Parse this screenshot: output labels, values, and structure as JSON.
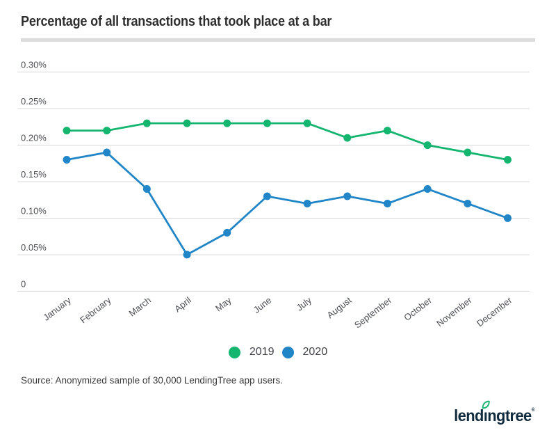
{
  "header": {
    "divider_color": "#dcdcdc"
  },
  "chart_data": {
    "type": "line",
    "title": "Percentage of all transactions that took place at a bar",
    "categories": [
      "January",
      "February",
      "March",
      "April",
      "May",
      "June",
      "July",
      "August",
      "September",
      "October",
      "November",
      "December"
    ],
    "series": [
      {
        "name": "2019",
        "color": "#13b56f",
        "values": [
          0.22,
          0.22,
          0.23,
          0.23,
          0.23,
          0.23,
          0.23,
          0.21,
          0.22,
          0.2,
          0.19,
          0.18
        ]
      },
      {
        "name": "2020",
        "color": "#2186c7",
        "values": [
          0.18,
          0.19,
          0.14,
          0.05,
          0.08,
          0.13,
          0.12,
          0.13,
          0.12,
          0.14,
          0.12,
          0.1
        ]
      }
    ],
    "y_ticks": [
      {
        "value": 0.3,
        "label": "0.30%"
      },
      {
        "value": 0.25,
        "label": "0.25%"
      },
      {
        "value": 0.2,
        "label": "0.20%"
      },
      {
        "value": 0.15,
        "label": "0.15%"
      },
      {
        "value": 0.1,
        "label": "0.10%"
      },
      {
        "value": 0.05,
        "label": "0.05%"
      },
      {
        "value": 0,
        "label": "0"
      }
    ],
    "ylim": [
      0,
      0.3
    ],
    "unit": "%",
    "grid": true,
    "grid_color": "#d8d8d8",
    "axis_text_color": "#4b4f54",
    "legend_position": "bottom"
  },
  "legend": {
    "items": [
      {
        "label": "2019",
        "color": "#13b56f"
      },
      {
        "label": "2020",
        "color": "#2186c7"
      }
    ]
  },
  "footer": {
    "source_note": "Source: Anonymized sample of 30,000 LendingTree app users.",
    "logo": {
      "brand": "lendingtree",
      "trademark": "®",
      "text_color": "#102a3e",
      "leaf_color": "#22b573"
    }
  }
}
